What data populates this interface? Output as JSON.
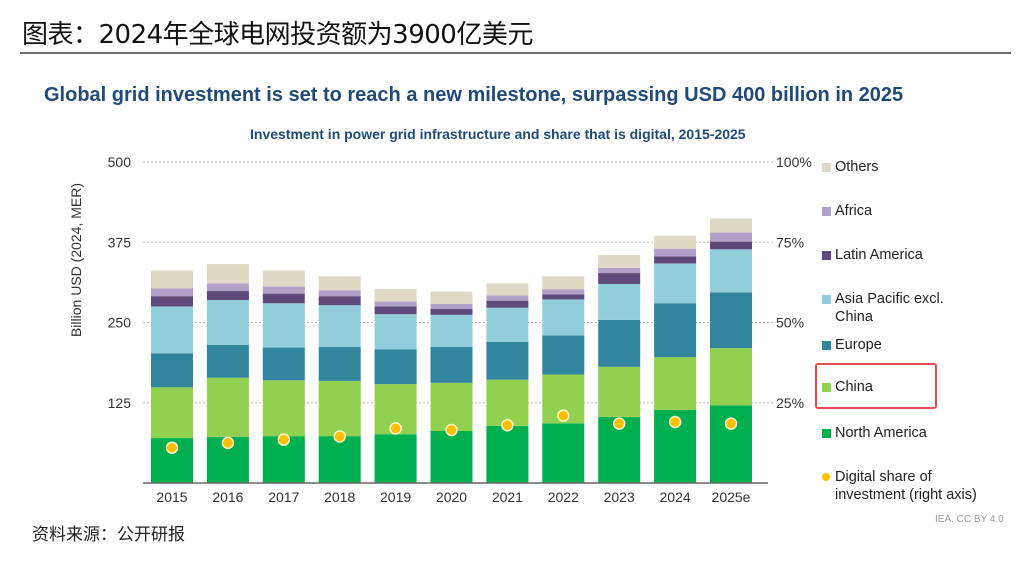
{
  "page": {
    "title": "图表：2024年全球电网投资额为3900亿美元",
    "source_note": "资料来源：公开研报",
    "credit": "IEA. CC BY 4.0"
  },
  "chart_data": {
    "type": "bar",
    "stacked": true,
    "title": "Global grid investment is set to reach a new milestone, surpassing USD 400 billion in 2025",
    "subtitle": "Investment in power grid infrastructure and share that is digital, 2015-2025",
    "ylabel": "Billion USD (2024, MER)",
    "ylim": [
      0,
      500
    ],
    "yticks": [
      "125",
      "250",
      "375",
      "500"
    ],
    "y2lim": [
      0,
      100
    ],
    "y2ticks": [
      "25%",
      "50%",
      "75%",
      "100%"
    ],
    "grid": true,
    "legend_position": "right",
    "categories": [
      "2015",
      "2016",
      "2017",
      "2018",
      "2019",
      "2020",
      "2021",
      "2022",
      "2023",
      "2024",
      "2025e"
    ],
    "series": [
      {
        "name": "North America",
        "color": "#00b050",
        "values": [
          70,
          72,
          73,
          73,
          76,
          81,
          89,
          93,
          103,
          114,
          121
        ]
      },
      {
        "name": "China",
        "color": "#92d050",
        "values": [
          79,
          92,
          87,
          86,
          78,
          75,
          72,
          76,
          78,
          82,
          89
        ]
      },
      {
        "name": "Europe",
        "color": "#31859c",
        "values": [
          53,
          51,
          51,
          53,
          54,
          56,
          59,
          61,
          73,
          84,
          87
        ]
      },
      {
        "name": "Asia Pacific excl. China",
        "color": "#92cddc",
        "values": [
          73,
          70,
          69,
          65,
          55,
          50,
          53,
          56,
          56,
          62,
          67
        ]
      },
      {
        "name": "Latin America",
        "color": "#5f497a",
        "values": [
          16,
          14,
          15,
          14,
          12,
          9,
          11,
          8,
          17,
          11,
          12
        ]
      },
      {
        "name": "Africa",
        "color": "#b1a0c7",
        "values": [
          12,
          12,
          11,
          9,
          8,
          8,
          8,
          8,
          8,
          12,
          14
        ]
      },
      {
        "name": "Others",
        "color": "#ddd9c4",
        "values": [
          28,
          30,
          25,
          22,
          19,
          19,
          19,
          20,
          20,
          20,
          22
        ]
      }
    ],
    "digital_share": {
      "name": "Digital share of investment (right axis)",
      "color": "#ffc000",
      "axis": "right",
      "values_percent": [
        11,
        12.5,
        13.5,
        14.5,
        17,
        16.5,
        18,
        21,
        18.5,
        19,
        18.5
      ]
    },
    "legend": [
      {
        "label": "Others",
        "color": "#ddd9c4",
        "shape": "square"
      },
      {
        "label": "Africa",
        "color": "#b1a0c7",
        "shape": "square"
      },
      {
        "label": "Latin America",
        "color": "#5f497a",
        "shape": "square"
      },
      {
        "label": "Asia Pacific excl.\nChina",
        "color": "#92cddc",
        "shape": "square"
      },
      {
        "label": "Europe",
        "color": "#31859c",
        "shape": "square"
      },
      {
        "label": "China",
        "color": "#92d050",
        "shape": "square",
        "highlighted": true
      },
      {
        "label": "North America",
        "color": "#00b050",
        "shape": "square"
      },
      {
        "label": "Digital share of\ninvestment (right axis)",
        "color": "#ffc000",
        "shape": "circle"
      }
    ]
  }
}
